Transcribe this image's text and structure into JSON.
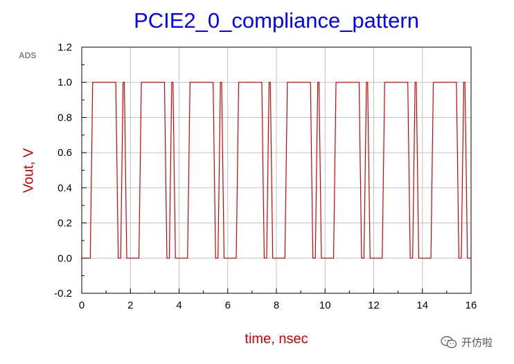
{
  "chart_data": {
    "type": "line",
    "title": "PCIE2_0_compliance_pattern",
    "xlabel": "time, nsec",
    "ylabel": "Vout, V",
    "xlim": [
      0,
      16
    ],
    "ylim": [
      -0.2,
      1.2
    ],
    "x_ticks": [
      "0",
      "2",
      "4",
      "6",
      "8",
      "10",
      "12",
      "14",
      "16"
    ],
    "y_ticks": [
      "-0.2",
      "0.0",
      "0.2",
      "0.4",
      "0.6",
      "0.8",
      "1.0",
      "1.2"
    ],
    "grid": true,
    "series": [
      {
        "color": "#cc0000",
        "x": [
          0,
          0.35,
          0.4,
          0.45,
          1.4,
          1.45,
          1.5,
          1.6,
          1.65,
          1.7,
          1.75,
          1.8,
          1.85,
          1.9,
          2.35,
          2.4,
          2.45,
          3.4,
          3.45,
          3.5,
          3.6,
          3.65,
          3.7,
          3.75,
          3.8,
          3.85,
          3.9,
          4.35,
          4.4,
          4.45,
          5.4,
          5.45,
          5.5,
          5.6,
          5.65,
          5.7,
          5.75,
          5.8,
          5.85,
          5.9,
          6.35,
          6.4,
          6.45,
          7.4,
          7.45,
          7.5,
          7.6,
          7.65,
          7.7,
          7.75,
          7.8,
          7.85,
          7.9,
          8.35,
          8.4,
          8.45,
          9.4,
          9.45,
          9.5,
          9.6,
          9.65,
          9.7,
          9.75,
          9.8,
          9.85,
          9.9,
          10.35,
          10.4,
          10.45,
          11.4,
          11.45,
          11.5,
          11.6,
          11.65,
          11.7,
          11.75,
          11.8,
          11.85,
          11.9,
          12.35,
          12.4,
          12.45,
          13.4,
          13.45,
          13.5,
          13.6,
          13.65,
          13.7,
          13.75,
          13.8,
          13.85,
          13.9,
          14.35,
          14.4,
          14.45,
          15.4,
          15.45,
          15.5,
          15.6,
          15.65,
          15.7,
          15.75,
          15.8,
          15.85,
          15.9,
          16
        ],
        "y": [
          0,
          0,
          0.5,
          1,
          1,
          0.5,
          0,
          0,
          0.5,
          1,
          1,
          0.5,
          0,
          0,
          0,
          0.5,
          1,
          1,
          0.5,
          0,
          0,
          0.5,
          1,
          1,
          0.5,
          0,
          0,
          0,
          0.5,
          1,
          1,
          0.5,
          0,
          0,
          0.5,
          1,
          1,
          0.5,
          0,
          0,
          0,
          0.5,
          1,
          1,
          0.5,
          0,
          0,
          0.5,
          1,
          1,
          0.5,
          0,
          0,
          0,
          0.5,
          1,
          1,
          0.5,
          0,
          0,
          0.5,
          1,
          1,
          0.5,
          0,
          0,
          0,
          0.5,
          1,
          1,
          0.5,
          0,
          0,
          0.5,
          1,
          1,
          0.5,
          0,
          0,
          0,
          0.5,
          1,
          1,
          0.5,
          0,
          0,
          0.5,
          1,
          1,
          0.5,
          0,
          0,
          0,
          0.5,
          1,
          1,
          0.5,
          0,
          0,
          0.5,
          1,
          1,
          0.5,
          0,
          0,
          0
        ]
      }
    ]
  },
  "brand_label": "ADS",
  "watermark": {
    "icon": "wechat-icon",
    "text": "开仿啦"
  }
}
